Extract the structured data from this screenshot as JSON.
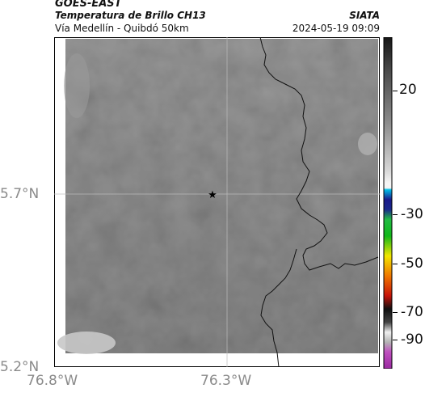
{
  "header": {
    "satellite": "GOES-EAST",
    "product": "Temperatura de Brillo CH13",
    "region": "Vía Medellín - Quibdó 50km",
    "brand": "SIATA",
    "datetime": "2024-05-19 09:09"
  },
  "map": {
    "lat_ticks": [
      "5.7°N",
      "5.2°N"
    ],
    "lon_ticks": [
      "76.8°W",
      "76.3°W"
    ],
    "marker_icon": "star-icon",
    "colors": {
      "field": "#7e7e7e",
      "border_line": "#111111",
      "grid": "#bdbdbd"
    }
  },
  "colorbar": {
    "labels": [
      "20",
      "-30",
      "-50",
      "-70",
      "-90"
    ],
    "colors": {
      "top": "#1a1a1a",
      "upper_gray": "#8c8c8c",
      "white": "#f5f5f5",
      "cyan": "#00b7e6",
      "blue": "#1a2a8c",
      "green": "#12b81a",
      "yellow": "#f2e600",
      "orange": "#f07800",
      "red": "#c8140a",
      "black": "#101010",
      "magenta": "#b43cb4"
    }
  }
}
